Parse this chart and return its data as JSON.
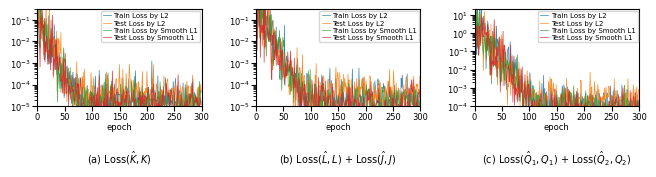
{
  "n_epochs": 300,
  "legend_labels": [
    "Train Loss by L2",
    "Test Loss by L2",
    "Train Loss by Smooth L1",
    "Test Loss by Smooth L1"
  ],
  "line_colors": [
    "#1f77b4",
    "#ff7f0e",
    "#2ca02c",
    "#d62728"
  ],
  "xlabel": "epoch",
  "ylim_subplot1": [
    1e-05,
    0.3
  ],
  "ylim_subplot2": [
    1e-05,
    0.3
  ],
  "ylim_subplot3": [
    0.0001,
    20.0
  ],
  "subtitle_a": "(a) Loss($\\hat{K}, K$)",
  "subtitle_b": "(b) Loss($\\hat{L}, L$) + Loss($\\hat{J}, J$)",
  "subtitle_c": "(c) Loss($\\hat{Q}_1, Q_1$) + Loss($\\hat{Q}_2, Q_2$)",
  "legend_fontsize": 5.0,
  "axis_fontsize": 6,
  "subtitle_fontsize": 7,
  "linewidth": 0.5
}
